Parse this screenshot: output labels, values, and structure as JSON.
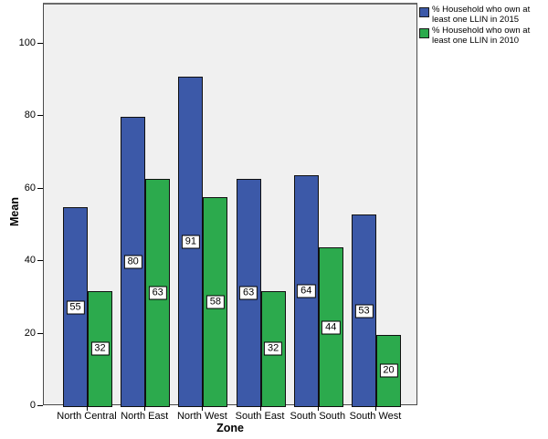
{
  "chart_data": {
    "type": "bar",
    "title": "",
    "xlabel": "Zone",
    "ylabel": "Mean",
    "categories": [
      "North Central",
      "North East",
      "North West",
      "South East",
      "South South",
      "South West"
    ],
    "series": [
      {
        "name": "% Household who own at least one LLIN in 2015",
        "color": "#3c59a8",
        "values": [
          55,
          80,
          91,
          63,
          64,
          53
        ]
      },
      {
        "name": "% Household who own at least one LLIN in 2010",
        "color": "#2caa4d",
        "values": [
          32,
          63,
          58,
          32,
          44,
          20
        ]
      }
    ],
    "ylim": [
      0,
      111
    ],
    "yticks": [
      0,
      20,
      40,
      60,
      80,
      100
    ],
    "grid": "off",
    "legend_position": "top-right",
    "data_labels": "value shown at middle of each bar in white box",
    "plot_background": "#f0f0f0"
  }
}
